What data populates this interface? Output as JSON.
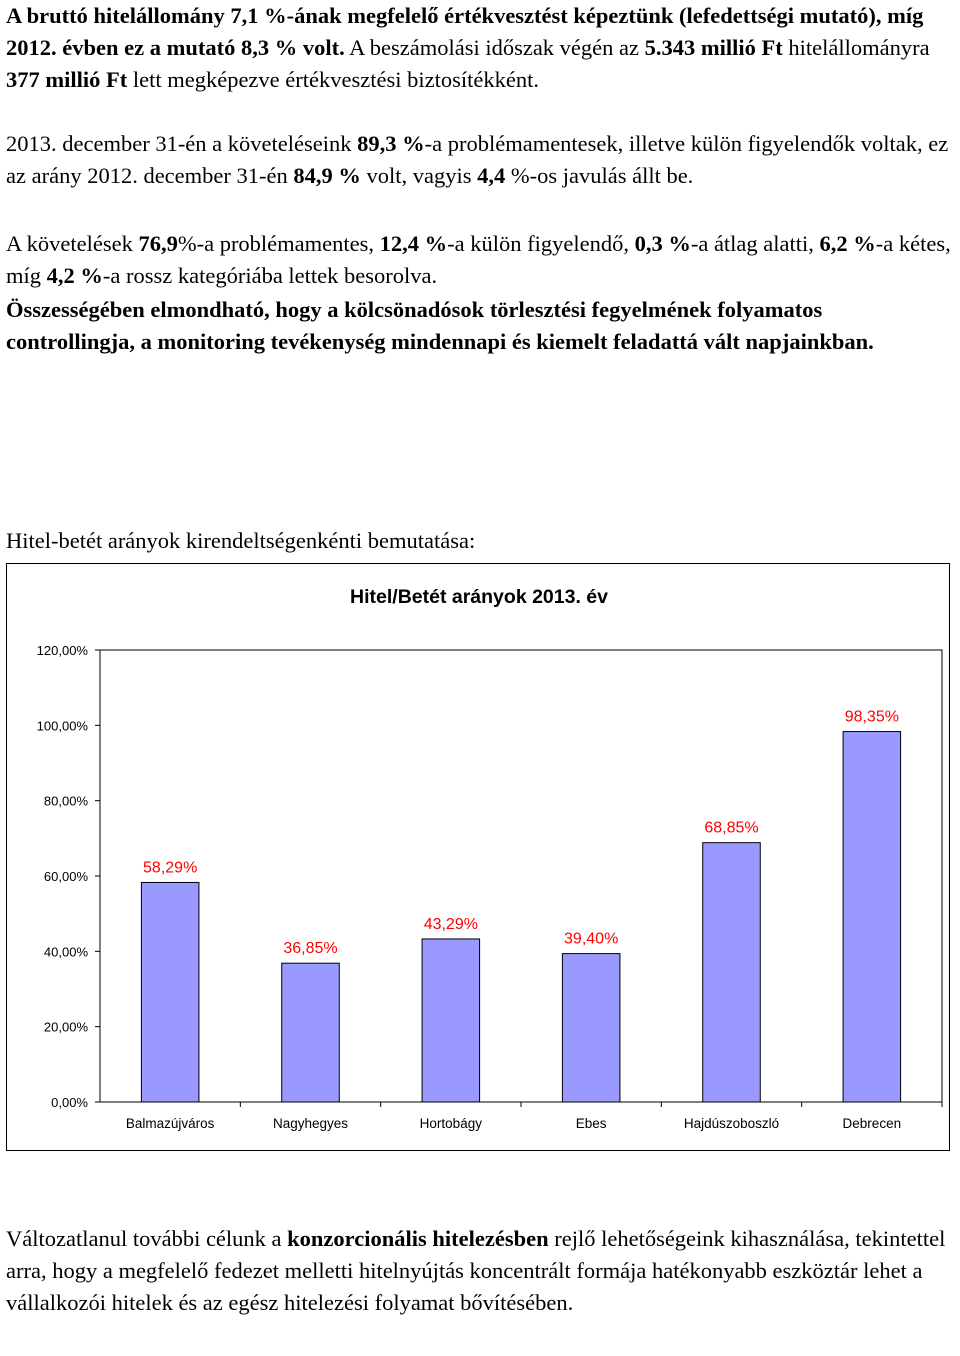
{
  "top_paragraphs": [
    {
      "segments": [
        {
          "t": "A bruttó hitelállomány 7,1 %-ának megfelelő értékvesztést képeztünk (lefedettségi mutató), míg 2012. évben ez a mutató 8,3 % volt.",
          "b": true
        },
        {
          "t": " A beszámolási időszak végén az ",
          "b": false
        },
        {
          "t": "5.343 millió Ft",
          "b": true
        },
        {
          "t": " hitelállományra ",
          "b": false
        },
        {
          "t": "377 millió Ft",
          "b": true
        },
        {
          "t": " lett megképezve értékvesztési biztosítékként.",
          "b": false
        }
      ]
    },
    {
      "segments": [
        {
          "t": "2013. december 31-én a követeléseink ",
          "b": false
        },
        {
          "t": "89,3 %",
          "b": true
        },
        {
          "t": "-a problémamentesek, illetve külön figyelendők voltak, ez az arány 2012. december 31-én ",
          "b": false
        },
        {
          "t": "84,9 %",
          "b": true
        },
        {
          "t": " volt, vagyis ",
          "b": false
        },
        {
          "t": "4,4",
          "b": true
        },
        {
          "t": " %-os javulás állt be.",
          "b": false
        }
      ]
    },
    {
      "segments": [
        {
          "t": "A követelések ",
          "b": false
        },
        {
          "t": "76,9",
          "b": true
        },
        {
          "t": "%-a problémamentes, ",
          "b": false
        },
        {
          "t": "12,4 %",
          "b": true
        },
        {
          "t": "-a külön figyelendő, ",
          "b": false
        },
        {
          "t": "0,3 %",
          "b": true
        },
        {
          "t": "-a átlag alatti, ",
          "b": false
        },
        {
          "t": "6,2 %",
          "b": true
        },
        {
          "t": "-a kétes, míg ",
          "b": false
        },
        {
          "t": "4,2 %",
          "b": true
        },
        {
          "t": "-a rossz kategóriába lettek besorolva.",
          "b": false
        }
      ]
    },
    {
      "segments": [
        {
          "t": "Összességében elmondható, hogy a kölcsönadósok törlesztési fegyelmének folyamatos controllingja, a monitoring tevékenység mindennapi és kiemelt feladattá vált napjainkban.",
          "b": true
        }
      ]
    }
  ],
  "section_label": "Hitel-betét arányok kirendeltségenkénti bemutatása:",
  "chart_data": {
    "type": "bar",
    "title": "Hitel/Betét arányok 2013. év",
    "categories": [
      "Balmazújváros",
      "Nagyhegyes",
      "Hortobágy",
      "Ebes",
      "Hajdúszoboszló",
      "Debrecen"
    ],
    "values": [
      58.29,
      36.85,
      43.29,
      39.4,
      68.85,
      98.35
    ],
    "value_labels": [
      "58,29%",
      "36,85%",
      "43,29%",
      "39,40%",
      "68,85%",
      "98,35%"
    ],
    "y_ticks": [
      "0,00%",
      "20,00%",
      "40,00%",
      "60,00%",
      "80,00%",
      "100,00%",
      "120,00%"
    ],
    "ylim": [
      0,
      120
    ],
    "grid": false,
    "legend": false,
    "bar_color": "#9999ff",
    "label_color": "#ff0000"
  },
  "bottom_paragraph": {
    "segments": [
      {
        "t": "Változatlanul további célunk a ",
        "b": false
      },
      {
        "t": "konzorcionális hitelezésben",
        "b": true
      },
      {
        "t": " rejlő lehetőségeink kihasználása, tekintettel arra, hogy a megfelelő fedezet melletti hitelnyújtás koncentrált formája hatékonyabb eszköztár lehet a vállalkozói hitelek és az egész hitelezési folyamat bővítésében.",
        "b": false
      }
    ]
  }
}
